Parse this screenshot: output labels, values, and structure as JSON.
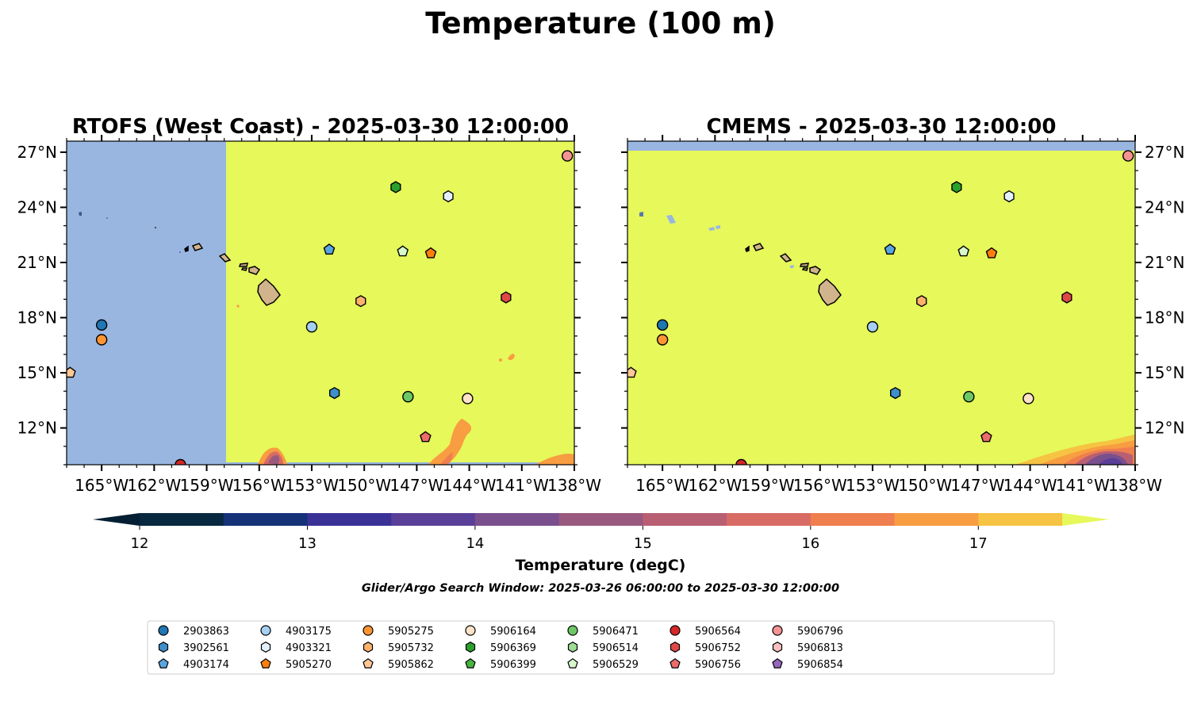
{
  "figure": {
    "title": "Temperature (100 m)",
    "window_text": "Glider/Argo Search Window: 2025-03-26 06:00:00 to 2025-03-30 12:00:00"
  },
  "map": {
    "lon_range": [
      -167,
      -138
    ],
    "lat_range": [
      10,
      27.6
    ],
    "lon_ticks": [
      -165,
      -162,
      -159,
      -156,
      -153,
      -150,
      -147,
      -144,
      -141,
      -138
    ],
    "lon_tick_labels": [
      "165°W",
      "162°W",
      "159°W",
      "156°W",
      "153°W",
      "150°W",
      "147°W",
      "144°W",
      "141°W",
      "138°W"
    ],
    "lat_ticks": [
      27,
      24,
      21,
      18,
      15,
      12
    ],
    "lat_tick_labels": [
      "27°N",
      "24°N",
      "21°N",
      "18°N",
      "15°N",
      "12°N"
    ],
    "ocean_fill_color": "#e6f85a",
    "masked_color": "#98b6e0",
    "land_color": "#d2b48c"
  },
  "panels": [
    {
      "title": "RTOFS (West Coast) - 2025-03-30 12:00:00"
    },
    {
      "title": "CMEMS - 2025-03-30 12:00:00"
    }
  ],
  "colorbar": {
    "label": "Temperature (degC)",
    "min": 12,
    "max": 17.5,
    "ticks": [
      12,
      13,
      14,
      15,
      16,
      17
    ],
    "tick_labels": [
      "12",
      "13",
      "14",
      "15",
      "16",
      "17"
    ],
    "bins": [
      {
        "from": 12.0,
        "to": 12.5,
        "color": "#07283f"
      },
      {
        "from": 12.5,
        "to": 13.0,
        "color": "#153279"
      },
      {
        "from": 13.0,
        "to": 13.5,
        "color": "#3a3197"
      },
      {
        "from": 13.5,
        "to": 14.0,
        "color": "#5a3f98"
      },
      {
        "from": 14.0,
        "to": 14.5,
        "color": "#7a4f8e"
      },
      {
        "from": 14.5,
        "to": 15.0,
        "color": "#99597f"
      },
      {
        "from": 15.0,
        "to": 15.5,
        "color": "#b85f73"
      },
      {
        "from": 15.5,
        "to": 16.0,
        "color": "#d86b63"
      },
      {
        "from": 16.0,
        "to": 16.5,
        "color": "#ef7f4e"
      },
      {
        "from": 16.5,
        "to": 17.0,
        "color": "#f89d41"
      },
      {
        "from": 17.0,
        "to": 17.5,
        "color": "#f6c343"
      }
    ],
    "under_color": "#041f33",
    "over_color": "#e6f85a"
  },
  "floats": [
    {
      "id": "2903863",
      "marker": "circle",
      "color": "#1f77b4",
      "lon": -165.0,
      "lat": 17.6
    },
    {
      "id": "3902561",
      "marker": "hexagon",
      "color": "#3f8fc8",
      "lon": -151.7,
      "lat": 13.9
    },
    {
      "id": "4903174",
      "marker": "pentagon",
      "color": "#5aa5e0",
      "lon": -152.0,
      "lat": 21.7
    },
    {
      "id": "4903175",
      "marker": "circle",
      "color": "#a6d0f2",
      "lon": -153.0,
      "lat": 17.5
    },
    {
      "id": "4903321",
      "marker": "hexagon",
      "color": "#e3f1fc",
      "lon": -145.2,
      "lat": 24.6
    },
    {
      "id": "5905270",
      "marker": "pentagon",
      "color": "#ff7f0e",
      "lon": -146.2,
      "lat": 21.5
    },
    {
      "id": "5905275",
      "marker": "circle",
      "color": "#ff9433",
      "lon": -165.0,
      "lat": 16.8
    },
    {
      "id": "5905732",
      "marker": "hexagon",
      "color": "#ffb26c",
      "lon": -150.2,
      "lat": 18.9
    },
    {
      "id": "5905862",
      "marker": "pentagon",
      "color": "#ffc896",
      "lon": -166.8,
      "lat": 15.0
    },
    {
      "id": "5906164",
      "marker": "circle",
      "color": "#ffe3c8",
      "lon": -144.1,
      "lat": 13.6
    },
    {
      "id": "5906369",
      "marker": "hexagon",
      "color": "#2ca02c",
      "lon": -148.2,
      "lat": 25.1
    },
    {
      "id": "5906399",
      "marker": "pentagon",
      "color": "#46b43e",
      "lon": null,
      "lat": null
    },
    {
      "id": "5906471",
      "marker": "circle",
      "color": "#6cc764",
      "lon": -147.5,
      "lat": 13.7
    },
    {
      "id": "5906514",
      "marker": "hexagon",
      "color": "#9ddc92",
      "lon": null,
      "lat": null
    },
    {
      "id": "5906529",
      "marker": "pentagon",
      "color": "#d7f7cc",
      "lon": -147.8,
      "lat": 21.6
    },
    {
      "id": "5906564",
      "marker": "circle",
      "color": "#d62728",
      "lon": -160.5,
      "lat": 10.0
    },
    {
      "id": "5906752",
      "marker": "hexagon",
      "color": "#e04848",
      "lon": -141.9,
      "lat": 19.1
    },
    {
      "id": "5906756",
      "marker": "pentagon",
      "color": "#ec6b6b",
      "lon": -146.5,
      "lat": 11.5
    },
    {
      "id": "5906796",
      "marker": "circle",
      "color": "#f59292",
      "lon": -138.4,
      "lat": 26.8
    },
    {
      "id": "5906813",
      "marker": "hexagon",
      "color": "#f8c0c0",
      "lon": null,
      "lat": null
    },
    {
      "id": "5906854",
      "marker": "pentagon",
      "color": "#9467bd",
      "lon": null,
      "lat": null
    }
  ]
}
